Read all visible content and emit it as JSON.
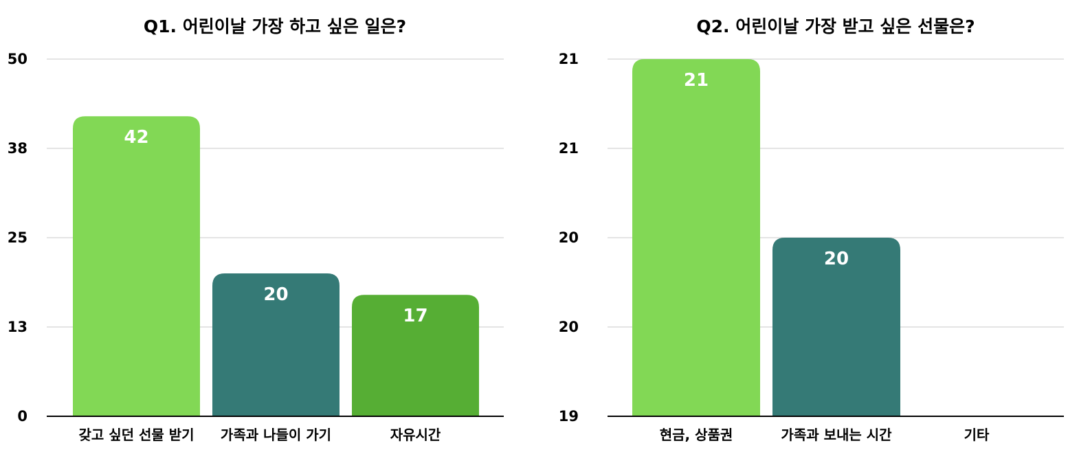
{
  "chart_data": [
    {
      "type": "bar",
      "title": "Q1. 어린이날 가장 하고 싶은 일은?",
      "categories": [
        "갖고 싶던 선물 받기",
        "가족과 나들이 가기",
        "자유시간"
      ],
      "values": [
        42,
        20,
        17
      ],
      "data_labels": [
        "42",
        "20",
        "17"
      ],
      "ylim": [
        0,
        50
      ],
      "yticks": [
        0,
        12.5,
        25,
        37.5,
        50
      ],
      "ytick_labels": [
        "0",
        "13",
        "25",
        "38",
        "50"
      ],
      "colors": [
        "#82d855",
        "#357a76",
        "#56ae34"
      ],
      "grid": true,
      "legend": "none"
    },
    {
      "type": "bar",
      "title": "Q2. 어린이날 가장 받고 싶은 선물은?",
      "categories": [
        "현금, 상품권",
        "가족과 보내는 시간",
        "기타"
      ],
      "values": [
        21,
        20,
        null
      ],
      "data_labels": [
        "21",
        "20",
        ""
      ],
      "ylim": [
        19,
        21
      ],
      "yticks": [
        19,
        19.5,
        20,
        20.5,
        21
      ],
      "ytick_labels": [
        "19",
        "20",
        "20",
        "21",
        "21"
      ],
      "colors": [
        "#82d855",
        "#357a76",
        "#56ae34"
      ],
      "grid": true,
      "legend": "none"
    }
  ]
}
